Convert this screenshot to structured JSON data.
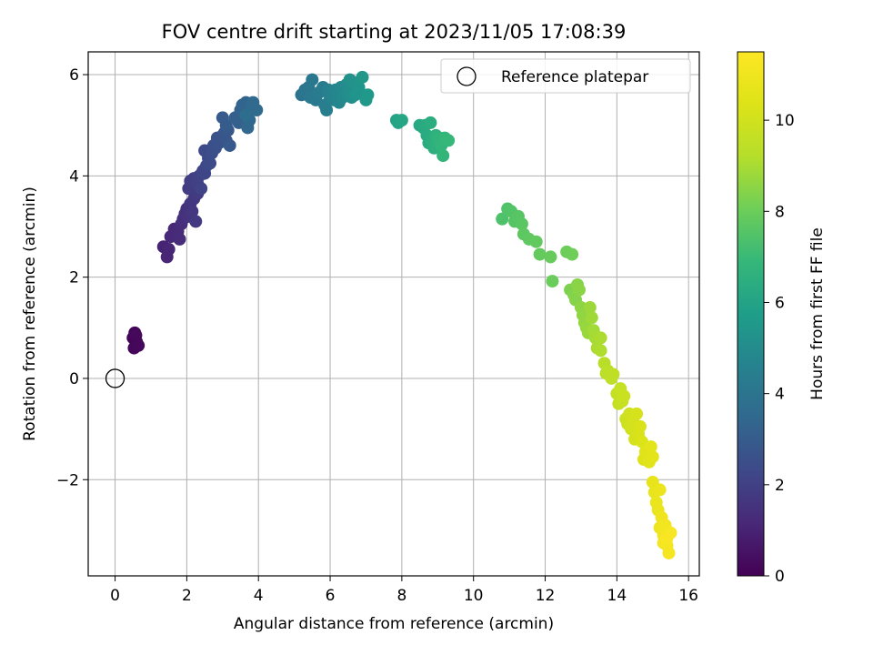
{
  "chart_data": {
    "type": "scatter",
    "title": "FOV centre drift starting at 2023/11/05 17:08:39",
    "xlabel": "Angular distance from reference (arcmin)",
    "ylabel": "Rotation from reference (arcmin)",
    "xlim": [
      -0.75,
      16.3
    ],
    "ylim": [
      -3.9,
      6.45
    ],
    "xticks": [
      0,
      2,
      4,
      6,
      8,
      10,
      12,
      14,
      16
    ],
    "yticks": [
      -2,
      0,
      2,
      4,
      6
    ],
    "ytick_labels": [
      "−2",
      "0",
      "2",
      "4",
      "6"
    ],
    "grid": true,
    "legend": {
      "placement": "top-right",
      "entries": [
        "Reference platepar"
      ]
    },
    "reference_point": {
      "x": 0,
      "y": 0
    },
    "colorbar": {
      "label": "Hours from first FF file",
      "range": [
        0,
        11.5
      ],
      "ticks": [
        0,
        2,
        4,
        6,
        8,
        10
      ],
      "colormap": "viridis"
    },
    "points": [
      [
        0.5,
        0.8,
        0.1
      ],
      [
        0.55,
        0.9,
        0.12
      ],
      [
        0.6,
        0.72,
        0.15
      ],
      [
        0.53,
        0.6,
        0.17
      ],
      [
        0.65,
        0.65,
        0.2
      ],
      [
        0.58,
        0.85,
        0.22
      ],
      [
        1.35,
        2.6,
        1.0
      ],
      [
        1.45,
        2.4,
        1.05
      ],
      [
        1.5,
        2.55,
        1.1
      ],
      [
        1.55,
        2.8,
        1.15
      ],
      [
        1.65,
        2.95,
        1.2
      ],
      [
        1.75,
        2.9,
        1.25
      ],
      [
        1.8,
        2.75,
        1.3
      ],
      [
        1.85,
        3.05,
        1.35
      ],
      [
        1.9,
        3.15,
        1.4
      ],
      [
        1.95,
        3.25,
        1.45
      ],
      [
        2.0,
        3.35,
        1.5
      ],
      [
        2.05,
        3.2,
        1.55
      ],
      [
        2.1,
        3.45,
        1.6
      ],
      [
        2.15,
        3.3,
        1.65
      ],
      [
        2.2,
        3.55,
        1.7
      ],
      [
        2.25,
        3.1,
        1.75
      ],
      [
        2.3,
        3.65,
        1.8
      ],
      [
        2.05,
        3.75,
        1.85
      ],
      [
        2.1,
        3.9,
        1.9
      ],
      [
        2.2,
        3.95,
        1.95
      ],
      [
        2.3,
        3.85,
        2.0
      ],
      [
        2.35,
        4.0,
        2.05
      ],
      [
        2.4,
        3.75,
        2.1
      ],
      [
        2.45,
        4.1,
        2.15
      ],
      [
        2.5,
        4.05,
        2.2
      ],
      [
        2.55,
        4.2,
        2.25
      ],
      [
        2.6,
        4.35,
        2.3
      ],
      [
        2.5,
        4.5,
        2.35
      ],
      [
        2.65,
        4.25,
        2.4
      ],
      [
        2.7,
        4.45,
        2.45
      ],
      [
        2.75,
        4.6,
        2.5
      ],
      [
        2.8,
        4.55,
        2.55
      ],
      [
        2.85,
        4.75,
        2.6
      ],
      [
        2.9,
        4.65,
        2.65
      ],
      [
        3.0,
        4.8,
        2.7
      ],
      [
        3.05,
        4.85,
        2.75
      ],
      [
        3.1,
        4.7,
        2.8
      ],
      [
        3.15,
        4.9,
        2.85
      ],
      [
        3.2,
        4.6,
        2.9
      ],
      [
        3.0,
        5.15,
        2.95
      ],
      [
        3.1,
        5.0,
        3.0
      ],
      [
        3.35,
        5.15,
        3.1
      ],
      [
        3.45,
        5.05,
        3.15
      ],
      [
        3.5,
        5.3,
        3.2
      ],
      [
        3.6,
        5.25,
        3.25
      ],
      [
        3.55,
        5.4,
        3.3
      ],
      [
        3.65,
        5.45,
        3.35
      ],
      [
        3.7,
        4.95,
        3.4
      ],
      [
        3.75,
        5.1,
        3.45
      ],
      [
        3.8,
        5.35,
        3.5
      ],
      [
        3.85,
        5.45,
        3.55
      ],
      [
        3.95,
        5.3,
        3.6
      ],
      [
        3.65,
        5.2,
        3.65
      ],
      [
        5.2,
        5.6,
        4.0
      ],
      [
        5.3,
        5.7,
        4.05
      ],
      [
        5.4,
        5.75,
        4.1
      ],
      [
        5.5,
        5.9,
        4.15
      ],
      [
        5.45,
        5.55,
        4.2
      ],
      [
        5.6,
        5.5,
        4.25
      ],
      [
        5.7,
        5.65,
        4.3
      ],
      [
        5.8,
        5.75,
        4.35
      ],
      [
        5.85,
        5.4,
        4.4
      ],
      [
        5.9,
        5.3,
        4.45
      ],
      [
        5.95,
        5.7,
        4.5
      ],
      [
        6.0,
        5.55,
        4.55
      ],
      [
        6.05,
        5.65,
        4.6
      ],
      [
        6.1,
        5.5,
        4.65
      ],
      [
        6.15,
        5.7,
        4.7
      ],
      [
        6.2,
        5.6,
        4.75
      ],
      [
        6.25,
        5.45,
        4.8
      ],
      [
        6.3,
        5.75,
        4.85
      ],
      [
        6.35,
        5.55,
        4.9
      ],
      [
        6.4,
        5.6,
        4.95
      ],
      [
        6.45,
        5.8,
        5.0
      ],
      [
        6.5,
        5.65,
        5.05
      ],
      [
        6.55,
        5.7,
        5.1
      ],
      [
        6.6,
        5.55,
        5.15
      ],
      [
        6.55,
        5.9,
        5.2
      ],
      [
        6.65,
        5.85,
        5.25
      ],
      [
        6.7,
        5.6,
        5.3
      ],
      [
        6.75,
        5.65,
        5.35
      ],
      [
        6.8,
        5.75,
        5.4
      ],
      [
        6.9,
        5.95,
        5.45
      ],
      [
        7.0,
        5.5,
        5.5
      ],
      [
        7.05,
        5.6,
        5.55
      ],
      [
        7.85,
        5.1,
        6.0
      ],
      [
        7.9,
        5.05,
        6.05
      ],
      [
        8.0,
        5.1,
        6.1
      ],
      [
        8.5,
        5.0,
        6.2
      ],
      [
        8.6,
        4.95,
        6.25
      ],
      [
        8.65,
        5.0,
        6.3
      ],
      [
        8.7,
        4.8,
        6.35
      ],
      [
        8.75,
        4.65,
        6.4
      ],
      [
        8.8,
        5.05,
        6.45
      ],
      [
        8.85,
        4.7,
        6.5
      ],
      [
        8.9,
        4.55,
        6.55
      ],
      [
        8.95,
        4.8,
        6.6
      ],
      [
        9.0,
        4.7,
        6.65
      ],
      [
        9.05,
        4.75,
        6.7
      ],
      [
        9.1,
        4.6,
        6.75
      ],
      [
        9.15,
        4.4,
        6.8
      ],
      [
        9.2,
        4.75,
        6.85
      ],
      [
        9.3,
        4.7,
        6.9
      ],
      [
        10.8,
        3.15,
        7.4
      ],
      [
        10.95,
        3.35,
        7.45
      ],
      [
        11.05,
        3.3,
        7.5
      ],
      [
        11.15,
        3.1,
        7.55
      ],
      [
        11.25,
        3.2,
        7.6
      ],
      [
        11.35,
        3.05,
        7.65
      ],
      [
        11.4,
        2.85,
        7.7
      ],
      [
        11.55,
        2.75,
        7.75
      ],
      [
        11.75,
        2.7,
        7.8
      ],
      [
        11.85,
        2.45,
        7.85
      ],
      [
        12.15,
        2.4,
        7.9
      ],
      [
        12.2,
        1.92,
        7.95
      ],
      [
        12.6,
        2.5,
        8.0
      ],
      [
        12.75,
        2.45,
        8.05
      ],
      [
        12.7,
        1.75,
        8.3
      ],
      [
        12.8,
        1.65,
        8.35
      ],
      [
        12.85,
        1.55,
        8.4
      ],
      [
        12.9,
        1.85,
        8.45
      ],
      [
        12.95,
        1.75,
        8.5
      ],
      [
        13.0,
        1.4,
        8.55
      ],
      [
        13.05,
        1.25,
        8.6
      ],
      [
        13.1,
        1.1,
        8.65
      ],
      [
        13.15,
        1.0,
        8.7
      ],
      [
        13.2,
        0.9,
        8.75
      ],
      [
        13.25,
        1.4,
        8.8
      ],
      [
        13.3,
        1.2,
        8.85
      ],
      [
        13.35,
        0.95,
        8.9
      ],
      [
        13.4,
        0.8,
        8.95
      ],
      [
        13.45,
        0.6,
        9.0
      ],
      [
        13.55,
        0.8,
        9.05
      ],
      [
        13.55,
        0.55,
        9.1
      ],
      [
        13.65,
        0.3,
        9.3
      ],
      [
        13.7,
        0.1,
        9.35
      ],
      [
        13.75,
        0.15,
        9.4
      ],
      [
        13.85,
        0.0,
        9.45
      ],
      [
        13.9,
        0.08,
        9.5
      ],
      [
        14.0,
        -0.3,
        9.6
      ],
      [
        14.05,
        -0.5,
        9.65
      ],
      [
        14.1,
        -0.2,
        9.7
      ],
      [
        14.15,
        -0.45,
        9.75
      ],
      [
        14.2,
        -0.35,
        9.8
      ],
      [
        14.25,
        -0.8,
        9.85
      ],
      [
        14.3,
        -0.9,
        9.9
      ],
      [
        14.35,
        -0.7,
        9.95
      ],
      [
        14.4,
        -1.0,
        10.0
      ],
      [
        14.45,
        -0.85,
        10.05
      ],
      [
        14.5,
        -1.2,
        10.1
      ],
      [
        14.55,
        -0.7,
        10.15
      ],
      [
        14.6,
        -1.1,
        10.2
      ],
      [
        14.65,
        -0.95,
        10.25
      ],
      [
        14.7,
        -1.25,
        10.3
      ],
      [
        14.75,
        -1.6,
        10.4
      ],
      [
        14.8,
        -1.45,
        10.45
      ],
      [
        14.9,
        -1.65,
        10.5
      ],
      [
        14.95,
        -1.35,
        10.55
      ],
      [
        15.0,
        -1.55,
        10.6
      ],
      [
        15.0,
        -2.05,
        10.7
      ],
      [
        15.05,
        -2.25,
        10.75
      ],
      [
        15.1,
        -2.45,
        10.8
      ],
      [
        15.15,
        -2.6,
        10.85
      ],
      [
        15.2,
        -2.2,
        10.9
      ],
      [
        15.25,
        -2.75,
        10.95
      ],
      [
        15.2,
        -2.95,
        11.0
      ],
      [
        15.3,
        -3.1,
        11.05
      ],
      [
        15.35,
        -2.9,
        11.1
      ],
      [
        15.3,
        -3.25,
        11.15
      ],
      [
        15.4,
        -3.3,
        11.2
      ],
      [
        15.45,
        -3.45,
        11.25
      ],
      [
        15.5,
        -3.05,
        11.3
      ],
      [
        15.4,
        -3.15,
        11.35
      ]
    ]
  }
}
